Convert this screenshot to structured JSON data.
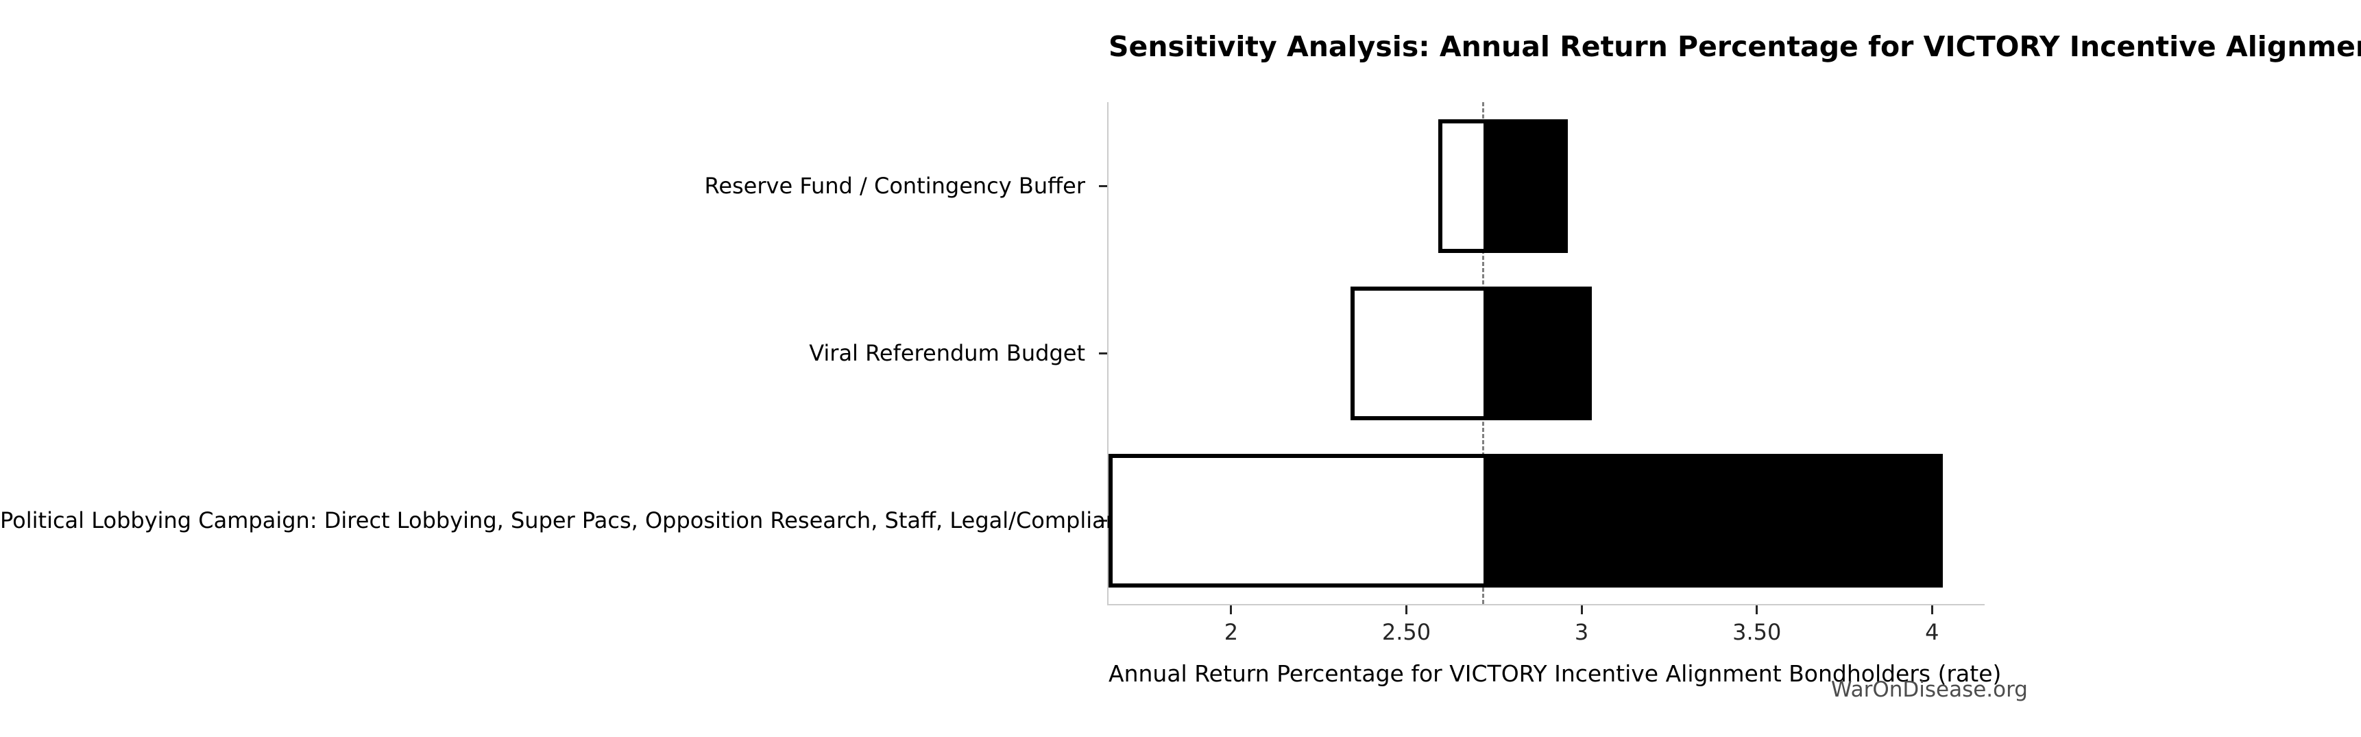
{
  "chart_data": {
    "type": "bar",
    "orientation": "horizontal",
    "subtype": "tornado-sensitivity",
    "title": "Sensitivity Analysis: Annual Return Percentage for VICTORY Incentive Alignment Bondholders",
    "xlabel": "Annual Return Percentage for VICTORY Incentive Alignment Bondholders (rate)",
    "watermark": "WarOnDisease.org",
    "baseline": 2.72,
    "xlim": [
      1.65,
      4.15
    ],
    "grid": false,
    "legend": "none",
    "xticks": [
      {
        "value": 2,
        "label": "2"
      },
      {
        "value": 2.5,
        "label": "2.50"
      },
      {
        "value": 3,
        "label": "3"
      },
      {
        "value": 3.5,
        "label": "3.50"
      },
      {
        "value": 4,
        "label": "4"
      }
    ],
    "rows": [
      {
        "label": "Reserve Fund / Contingency Buffer",
        "low": 2.59,
        "high": 2.96
      },
      {
        "label": "Viral Referendum Budget",
        "low": 2.34,
        "high": 3.03
      },
      {
        "label": "Political Lobbying Campaign: Direct Lobbying, Super Pacs, Opposition Research, Staff, Legal/Compliance",
        "low": 1.65,
        "high": 4.03
      }
    ],
    "colors": {
      "bar_low_fill": "#ffffff",
      "bar_high_fill": "#000000",
      "bar_edge": "#000000",
      "baseline_line": "#808080",
      "spine": "#cccccc",
      "tick": "#262626",
      "watermark": "#4d4d4d",
      "background": "#ffffff"
    }
  }
}
